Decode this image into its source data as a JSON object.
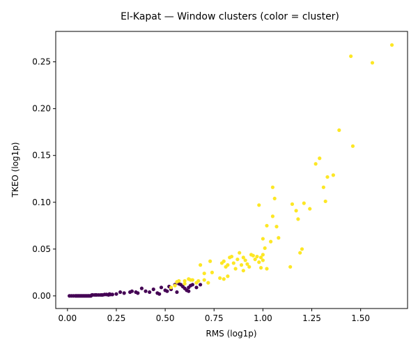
{
  "chart_data": {
    "type": "scatter",
    "title": "El-Kapat — Window clusters (color = cluster)",
    "xlabel": "RMS (log1p)",
    "ylabel": "TKEO (log1p)",
    "xlim": [
      -0.06,
      1.74
    ],
    "ylim": [
      -0.0135,
      0.2825
    ],
    "xticks": [
      0.0,
      0.25,
      0.5,
      0.75,
      1.0,
      1.25,
      1.5
    ],
    "xtick_labels": [
      "0.00",
      "0.25",
      "0.50",
      "0.75",
      "1.00",
      "1.25",
      "1.50"
    ],
    "yticks": [
      0.0,
      0.05,
      0.1,
      0.15,
      0.2,
      0.25
    ],
    "ytick_labels": [
      "0.00",
      "0.05",
      "0.10",
      "0.15",
      "0.20",
      "0.25"
    ],
    "grid": false,
    "legend": false,
    "colors": {
      "cluster_0": "#440154",
      "cluster_1": "#fde725"
    },
    "series": [
      {
        "cluster": 0,
        "points": [
          [
            0.01,
            0.0
          ],
          [
            0.02,
            0.0
          ],
          [
            0.03,
            0.0
          ],
          [
            0.04,
            0.0
          ],
          [
            0.045,
            0.0
          ],
          [
            0.05,
            0.0
          ],
          [
            0.055,
            0.0
          ],
          [
            0.06,
            0.0
          ],
          [
            0.065,
            0.0
          ],
          [
            0.07,
            0.0
          ],
          [
            0.075,
            0.0
          ],
          [
            0.08,
            0.0
          ],
          [
            0.085,
            0.0
          ],
          [
            0.09,
            0.0
          ],
          [
            0.095,
            0.0
          ],
          [
            0.1,
            0.0
          ],
          [
            0.105,
            0.0
          ],
          [
            0.11,
            0.0
          ],
          [
            0.115,
            0.0
          ],
          [
            0.12,
            0.0
          ],
          [
            0.125,
            0.001
          ],
          [
            0.13,
            0.001
          ],
          [
            0.14,
            0.001
          ],
          [
            0.145,
            0.001
          ],
          [
            0.15,
            0.001
          ],
          [
            0.16,
            0.001
          ],
          [
            0.17,
            0.001
          ],
          [
            0.175,
            0.001
          ],
          [
            0.18,
            0.001
          ],
          [
            0.19,
            0.0015
          ],
          [
            0.2,
            0.0015
          ],
          [
            0.21,
            0.001
          ],
          [
            0.215,
            0.002
          ],
          [
            0.22,
            0.0015
          ],
          [
            0.23,
            0.0015
          ],
          [
            0.25,
            0.002
          ],
          [
            0.27,
            0.004
          ],
          [
            0.29,
            0.003
          ],
          [
            0.32,
            0.004
          ],
          [
            0.33,
            0.005
          ],
          [
            0.35,
            0.004
          ],
          [
            0.36,
            0.003
          ],
          [
            0.38,
            0.008
          ],
          [
            0.4,
            0.005
          ],
          [
            0.42,
            0.004
          ],
          [
            0.44,
            0.007
          ],
          [
            0.46,
            0.003
          ],
          [
            0.47,
            0.002
          ],
          [
            0.48,
            0.009
          ],
          [
            0.5,
            0.006
          ],
          [
            0.51,
            0.005
          ],
          [
            0.52,
            0.01
          ],
          [
            0.53,
            0.007
          ],
          [
            0.55,
            0.012
          ],
          [
            0.56,
            0.004
          ],
          [
            0.57,
            0.013
          ],
          [
            0.58,
            0.012
          ],
          [
            0.59,
            0.01
          ],
          [
            0.6,
            0.008
          ],
          [
            0.61,
            0.006
          ],
          [
            0.62,
            0.009
          ],
          [
            0.63,
            0.011
          ],
          [
            0.64,
            0.012
          ],
          [
            0.66,
            0.009
          ],
          [
            0.68,
            0.012
          ],
          [
            0.62,
            0.005
          ]
        ]
      },
      {
        "cluster": 1,
        "points": [
          [
            0.53,
            0.009
          ],
          [
            0.55,
            0.011
          ],
          [
            0.57,
            0.016
          ],
          [
            0.6,
            0.013
          ],
          [
            0.62,
            0.018
          ],
          [
            0.64,
            0.017
          ],
          [
            0.66,
            0.014
          ],
          [
            0.67,
            0.016
          ],
          [
            0.68,
            0.033
          ],
          [
            0.7,
            0.024
          ],
          [
            0.72,
            0.014
          ],
          [
            0.73,
            0.037
          ],
          [
            0.74,
            0.025
          ],
          [
            0.78,
            0.019
          ],
          [
            0.79,
            0.035
          ],
          [
            0.8,
            0.037
          ],
          [
            0.81,
            0.031
          ],
          [
            0.82,
            0.033
          ],
          [
            0.83,
            0.041
          ],
          [
            0.85,
            0.035
          ],
          [
            0.86,
            0.029
          ],
          [
            0.87,
            0.039
          ],
          [
            0.88,
            0.046
          ],
          [
            0.89,
            0.033
          ],
          [
            0.9,
            0.041
          ],
          [
            0.91,
            0.038
          ],
          [
            0.92,
            0.034
          ],
          [
            0.93,
            0.031
          ],
          [
            0.94,
            0.044
          ],
          [
            0.95,
            0.043
          ],
          [
            0.96,
            0.039
          ],
          [
            0.97,
            0.042
          ],
          [
            0.98,
            0.097
          ],
          [
            0.99,
            0.041
          ],
          [
            1.0,
            0.044
          ],
          [
            1.0,
            0.061
          ],
          [
            1.01,
            0.051
          ],
          [
            1.02,
            0.075
          ],
          [
            1.04,
            0.058
          ],
          [
            1.05,
            0.085
          ],
          [
            1.05,
            0.116
          ],
          [
            1.06,
            0.104
          ],
          [
            1.07,
            0.074
          ],
          [
            1.08,
            0.062
          ],
          [
            1.14,
            0.031
          ],
          [
            1.15,
            0.098
          ],
          [
            1.17,
            0.091
          ],
          [
            1.18,
            0.082
          ],
          [
            1.19,
            0.046
          ],
          [
            1.2,
            0.05
          ],
          [
            1.21,
            0.099
          ],
          [
            1.24,
            0.093
          ],
          [
            1.27,
            0.141
          ],
          [
            1.29,
            0.147
          ],
          [
            1.31,
            0.116
          ],
          [
            1.32,
            0.101
          ],
          [
            1.33,
            0.127
          ],
          [
            1.36,
            0.129
          ],
          [
            1.39,
            0.177
          ],
          [
            1.45,
            0.256
          ],
          [
            1.46,
            0.16
          ],
          [
            1.56,
            0.249
          ],
          [
            1.66,
            0.268
          ],
          [
            0.8,
            0.018
          ],
          [
            0.82,
            0.021
          ],
          [
            0.9,
            0.027
          ],
          [
            0.84,
            0.042
          ],
          [
            0.99,
            0.03
          ],
          [
            1.0,
            0.038
          ],
          [
            0.98,
            0.036
          ],
          [
            1.02,
            0.029
          ],
          [
            0.6,
            0.016
          ],
          [
            0.63,
            0.017
          ],
          [
            0.7,
            0.017
          ],
          [
            0.56,
            0.015
          ]
        ]
      }
    ]
  }
}
